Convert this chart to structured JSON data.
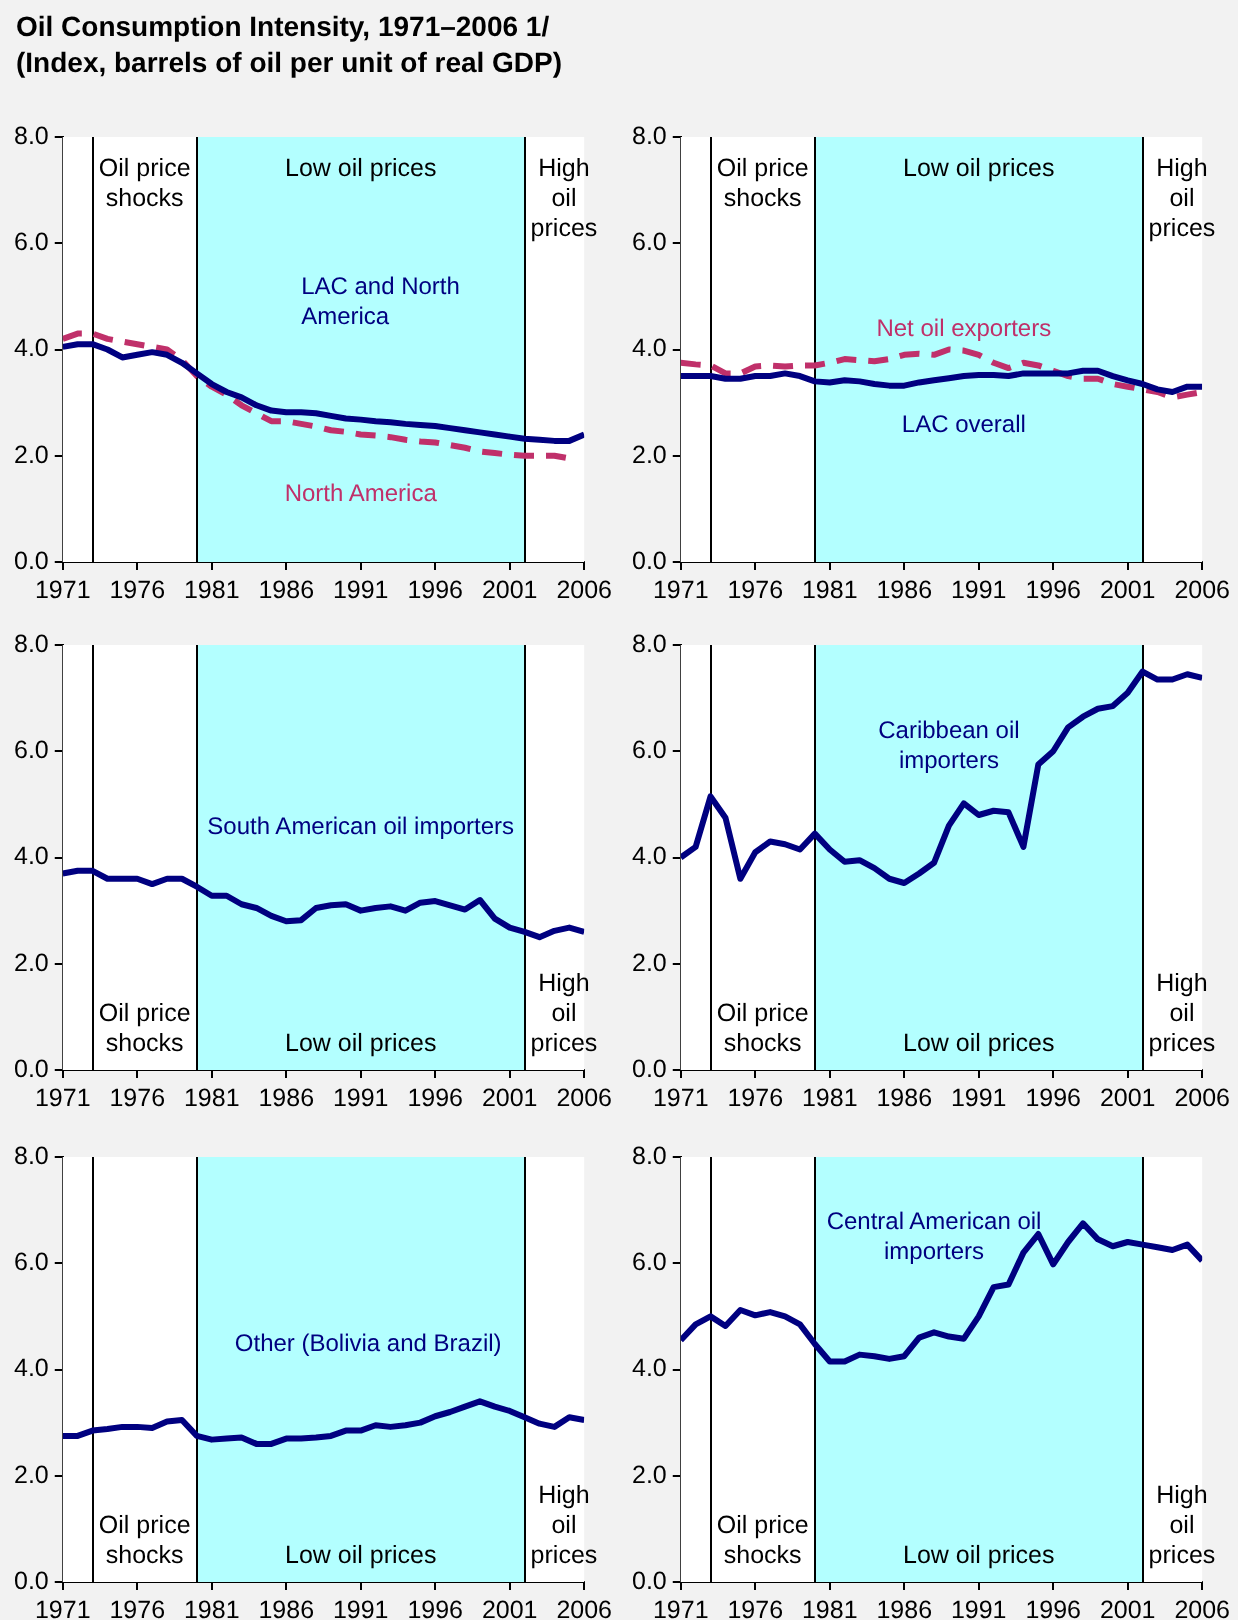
{
  "chart_data": [
    {
      "type": "line",
      "title": "Oil Consumption Intensity, 1971–2006 1/",
      "subtitle": "(Index, barrels of oil per unit of real GDP)",
      "x": [
        1971,
        1972,
        1973,
        1974,
        1975,
        1976,
        1977,
        1978,
        1979,
        1980,
        1981,
        1982,
        1983,
        1984,
        1985,
        1986,
        1987,
        1988,
        1989,
        1990,
        1991,
        1992,
        1993,
        1994,
        1995,
        1996,
        1997,
        1998,
        1999,
        2000,
        2001,
        2002,
        2003,
        2004,
        2005,
        2006
      ],
      "series": [
        {
          "name": "LAC and North America",
          "color": "#000080",
          "values": [
            4.05,
            4.1,
            4.1,
            4.0,
            3.85,
            3.9,
            3.95,
            3.9,
            3.75,
            3.55,
            3.35,
            3.2,
            3.1,
            2.95,
            2.85,
            2.82,
            2.82,
            2.8,
            2.75,
            2.7,
            2.68,
            2.65,
            2.63,
            2.6,
            2.58,
            2.56,
            2.52,
            2.48,
            2.44,
            2.4,
            2.36,
            2.32,
            2.3,
            2.28,
            2.28,
            2.4
          ]
        },
        {
          "name": "North America",
          "color": "#c0306a",
          "line_style": "dashed",
          "values": [
            4.2,
            4.3,
            4.3,
            4.2,
            4.15,
            4.1,
            4.05,
            4.0,
            3.8,
            3.5,
            3.3,
            3.15,
            2.95,
            2.8,
            2.65,
            2.65,
            2.6,
            2.55,
            2.48,
            2.45,
            2.4,
            2.38,
            2.35,
            2.3,
            2.27,
            2.25,
            2.2,
            2.15,
            2.08,
            2.05,
            2.02,
            2.0,
            2.0,
            2.0,
            1.95,
            null
          ]
        }
      ],
      "xlim": [
        1971,
        2006
      ],
      "xticks": [
        1971,
        1976,
        1981,
        1986,
        1991,
        1996,
        2001,
        2006
      ],
      "ylim": [
        0,
        8
      ],
      "yticks": [
        {
          "value": 0,
          "label": "0.0"
        },
        {
          "value": 2,
          "label": "2.0"
        },
        {
          "value": 4,
          "label": "4.0"
        },
        {
          "value": 6,
          "label": "6.0"
        },
        {
          "value": 8,
          "label": "8.0"
        }
      ],
      "ref_lines": [
        {
          "axis": "x",
          "value": 1973,
          "color": "#000000"
        },
        {
          "axis": "x",
          "value": 1980,
          "color": "#000000"
        },
        {
          "axis": "x",
          "value": 2002,
          "color": "#000000"
        }
      ],
      "bands": [
        {
          "axis": "x",
          "from": 1980,
          "to": 2002,
          "label": "Low oil prices",
          "color": "#b3ffff"
        }
      ],
      "annotations": [
        "Oil price shocks",
        "High oil prices"
      ]
    },
    {
      "type": "line",
      "x": [
        1971,
        1972,
        1973,
        1974,
        1975,
        1976,
        1977,
        1978,
        1979,
        1980,
        1981,
        1982,
        1983,
        1984,
        1985,
        1986,
        1987,
        1988,
        1989,
        1990,
        1991,
        1992,
        1993,
        1994,
        1995,
        1996,
        1997,
        1998,
        1999,
        2000,
        2001,
        2002,
        2003,
        2004,
        2005,
        2006
      ],
      "series": [
        {
          "name": "LAC overall",
          "color": "#000080",
          "values": [
            3.5,
            3.5,
            3.5,
            3.45,
            3.45,
            3.5,
            3.5,
            3.55,
            3.5,
            3.4,
            3.38,
            3.42,
            3.4,
            3.35,
            3.32,
            3.32,
            3.38,
            3.42,
            3.46,
            3.5,
            3.52,
            3.52,
            3.5,
            3.55,
            3.55,
            3.55,
            3.55,
            3.6,
            3.6,
            3.5,
            3.42,
            3.35,
            3.25,
            3.2,
            3.3,
            3.3
          ]
        },
        {
          "name": "Net oil exporters",
          "color": "#c0306a",
          "line_style": "dashed",
          "values": [
            3.75,
            3.72,
            3.7,
            3.55,
            3.55,
            3.68,
            3.7,
            3.68,
            3.7,
            3.7,
            3.75,
            3.82,
            3.8,
            3.78,
            3.82,
            3.9,
            3.92,
            3.9,
            4.0,
            3.98,
            3.9,
            3.75,
            3.65,
            3.75,
            3.7,
            3.6,
            3.5,
            3.45,
            3.45,
            3.35,
            3.3,
            3.25,
            3.2,
            3.1,
            3.15,
            3.2
          ]
        }
      ],
      "xlim": [
        1971,
        2006
      ],
      "xticks": [
        1971,
        1976,
        1981,
        1986,
        1991,
        1996,
        2001,
        2006
      ],
      "ylim": [
        0,
        8
      ],
      "yticks": [
        {
          "value": 0,
          "label": "0.0"
        },
        {
          "value": 2,
          "label": "2.0"
        },
        {
          "value": 4,
          "label": "4.0"
        },
        {
          "value": 6,
          "label": "6.0"
        },
        {
          "value": 8,
          "label": "8.0"
        }
      ],
      "ref_lines": [
        {
          "axis": "x",
          "value": 1973,
          "color": "#000000"
        },
        {
          "axis": "x",
          "value": 1980,
          "color": "#000000"
        },
        {
          "axis": "x",
          "value": 2002,
          "color": "#000000"
        }
      ],
      "bands": [
        {
          "axis": "x",
          "from": 1980,
          "to": 2002,
          "label": "Low oil prices",
          "color": "#b3ffff"
        }
      ],
      "annotations": [
        "Oil price shocks",
        "High oil prices"
      ]
    },
    {
      "type": "line",
      "x": [
        1971,
        1972,
        1973,
        1974,
        1975,
        1976,
        1977,
        1978,
        1979,
        1980,
        1981,
        1982,
        1983,
        1984,
        1985,
        1986,
        1987,
        1988,
        1989,
        1990,
        1991,
        1992,
        1993,
        1994,
        1995,
        1996,
        1997,
        1998,
        1999,
        2000,
        2001,
        2002,
        2003,
        2004,
        2005,
        2006
      ],
      "series": [
        {
          "name": "South American oil importers",
          "color": "#000080",
          "values": [
            3.7,
            3.75,
            3.75,
            3.6,
            3.6,
            3.6,
            3.5,
            3.6,
            3.6,
            3.45,
            3.28,
            3.28,
            3.12,
            3.05,
            2.9,
            2.8,
            2.82,
            3.05,
            3.1,
            3.12,
            3.0,
            3.05,
            3.08,
            3.0,
            3.15,
            3.18,
            3.1,
            3.02,
            3.2,
            2.85,
            2.68,
            2.6,
            2.5,
            2.62,
            2.68,
            2.6
          ]
        }
      ],
      "xlim": [
        1971,
        2006
      ],
      "xticks": [
        1971,
        1976,
        1981,
        1986,
        1991,
        1996,
        2001,
        2006
      ],
      "ylim": [
        0,
        8
      ],
      "yticks": [
        {
          "value": 0,
          "label": "0.0"
        },
        {
          "value": 2,
          "label": "2.0"
        },
        {
          "value": 4,
          "label": "4.0"
        },
        {
          "value": 6,
          "label": "6.0"
        },
        {
          "value": 8,
          "label": "8.0"
        }
      ],
      "ref_lines": [
        {
          "axis": "x",
          "value": 1973,
          "color": "#000000"
        },
        {
          "axis": "x",
          "value": 1980,
          "color": "#000000"
        },
        {
          "axis": "x",
          "value": 2002,
          "color": "#000000"
        }
      ],
      "bands": [
        {
          "axis": "x",
          "from": 1980,
          "to": 2002,
          "label": "Low oil prices",
          "color": "#b3ffff"
        }
      ],
      "annotations": [
        "Oil price shocks",
        "High oil prices"
      ]
    },
    {
      "type": "line",
      "x": [
        1971,
        1972,
        1973,
        1974,
        1975,
        1976,
        1977,
        1978,
        1979,
        1980,
        1981,
        1982,
        1983,
        1984,
        1985,
        1986,
        1987,
        1988,
        1989,
        1990,
        1991,
        1992,
        1993,
        1994,
        1995,
        1996,
        1997,
        1998,
        1999,
        2000,
        2001,
        2002,
        2003,
        2004,
        2005,
        2006
      ],
      "series": [
        {
          "name": "Caribbean oil importers",
          "color": "#000080",
          "values": [
            4.0,
            4.2,
            5.15,
            4.75,
            3.6,
            4.1,
            4.3,
            4.25,
            4.15,
            4.45,
            4.15,
            3.92,
            3.95,
            3.8,
            3.6,
            3.52,
            3.7,
            3.9,
            4.6,
            5.02,
            4.8,
            4.88,
            4.85,
            4.2,
            5.75,
            6.0,
            6.45,
            6.65,
            6.8,
            6.85,
            7.1,
            7.5,
            7.35,
            7.35,
            7.45,
            7.38
          ]
        }
      ],
      "xlim": [
        1971,
        2006
      ],
      "xticks": [
        1971,
        1976,
        1981,
        1986,
        1991,
        1996,
        2001,
        2006
      ],
      "ylim": [
        0,
        8
      ],
      "yticks": [
        {
          "value": 0,
          "label": "0.0"
        },
        {
          "value": 2,
          "label": "2.0"
        },
        {
          "value": 4,
          "label": "4.0"
        },
        {
          "value": 6,
          "label": "6.0"
        },
        {
          "value": 8,
          "label": "8.0"
        }
      ],
      "ref_lines": [
        {
          "axis": "x",
          "value": 1973,
          "color": "#000000"
        },
        {
          "axis": "x",
          "value": 1980,
          "color": "#000000"
        },
        {
          "axis": "x",
          "value": 2002,
          "color": "#000000"
        }
      ],
      "bands": [
        {
          "axis": "x",
          "from": 1980,
          "to": 2002,
          "label": "Low oil prices",
          "color": "#b3ffff"
        }
      ],
      "annotations": [
        "Oil price shocks",
        "High oil prices"
      ]
    },
    {
      "type": "line",
      "x": [
        1971,
        1972,
        1973,
        1974,
        1975,
        1976,
        1977,
        1978,
        1979,
        1980,
        1981,
        1982,
        1983,
        1984,
        1985,
        1986,
        1987,
        1988,
        1989,
        1990,
        1991,
        1992,
        1993,
        1994,
        1995,
        1996,
        1997,
        1998,
        1999,
        2000,
        2001,
        2002,
        2003,
        2004,
        2005,
        2006
      ],
      "series": [
        {
          "name": "Other (Bolivia and Brazil)",
          "color": "#000080",
          "values": [
            2.75,
            2.75,
            2.85,
            2.88,
            2.92,
            2.92,
            2.9,
            3.02,
            3.05,
            2.75,
            2.68,
            2.7,
            2.72,
            2.6,
            2.6,
            2.7,
            2.7,
            2.72,
            2.75,
            2.85,
            2.85,
            2.95,
            2.92,
            2.95,
            3.0,
            3.12,
            3.2,
            3.3,
            3.4,
            3.3,
            3.22,
            3.1,
            2.98,
            2.92,
            3.1,
            3.05
          ]
        }
      ],
      "xlim": [
        1971,
        2006
      ],
      "xticks": [
        1971,
        1976,
        1981,
        1986,
        1991,
        1996,
        2001,
        2006
      ],
      "ylim": [
        0,
        8
      ],
      "yticks": [
        {
          "value": 0,
          "label": "0.0"
        },
        {
          "value": 2,
          "label": "2.0"
        },
        {
          "value": 4,
          "label": "4.0"
        },
        {
          "value": 6,
          "label": "6.0"
        },
        {
          "value": 8,
          "label": "8.0"
        }
      ],
      "ref_lines": [
        {
          "axis": "x",
          "value": 1973,
          "color": "#000000"
        },
        {
          "axis": "x",
          "value": 1980,
          "color": "#000000"
        },
        {
          "axis": "x",
          "value": 2002,
          "color": "#000000"
        }
      ],
      "bands": [
        {
          "axis": "x",
          "from": 1980,
          "to": 2002,
          "label": "Low oil prices",
          "color": "#b3ffff"
        }
      ],
      "annotations": [
        "Oil price shocks",
        "High oil prices"
      ]
    },
    {
      "type": "line",
      "x": [
        1971,
        1972,
        1973,
        1974,
        1975,
        1976,
        1977,
        1978,
        1979,
        1980,
        1981,
        1982,
        1983,
        1984,
        1985,
        1986,
        1987,
        1988,
        1989,
        1990,
        1991,
        1992,
        1993,
        1994,
        1995,
        1996,
        1997,
        1998,
        1999,
        2000,
        2001,
        2002,
        2003,
        2004,
        2005,
        2006
      ],
      "series": [
        {
          "name": "Central American oil importers",
          "color": "#000080",
          "values": [
            4.55,
            4.85,
            5.0,
            4.82,
            5.12,
            5.02,
            5.08,
            5.0,
            4.85,
            4.48,
            4.15,
            4.15,
            4.28,
            4.25,
            4.2,
            4.25,
            4.6,
            4.7,
            4.62,
            4.58,
            5.0,
            5.55,
            5.6,
            6.2,
            6.55,
            5.98,
            6.4,
            6.75,
            6.45,
            6.32,
            6.4,
            6.35,
            6.3,
            6.25,
            6.35,
            6.05
          ]
        }
      ],
      "xlim": [
        1971,
        2006
      ],
      "xticks": [
        1971,
        1976,
        1981,
        1986,
        1991,
        1996,
        2001,
        2006
      ],
      "ylim": [
        0,
        8
      ],
      "yticks": [
        {
          "value": 0,
          "label": "0.0"
        },
        {
          "value": 2,
          "label": "2.0"
        },
        {
          "value": 4,
          "label": "4.0"
        },
        {
          "value": 6,
          "label": "6.0"
        },
        {
          "value": 8,
          "label": "8.0"
        }
      ],
      "ref_lines": [
        {
          "axis": "x",
          "value": 1973,
          "color": "#000000"
        },
        {
          "axis": "x",
          "value": 1980,
          "color": "#000000"
        },
        {
          "axis": "x",
          "value": 2002,
          "color": "#000000"
        }
      ],
      "bands": [
        {
          "axis": "x",
          "from": 1980,
          "to": 2002,
          "label": "Low oil prices",
          "color": "#b3ffff"
        }
      ],
      "annotations": [
        "Oil price shocks",
        "High oil prices"
      ]
    }
  ]
}
